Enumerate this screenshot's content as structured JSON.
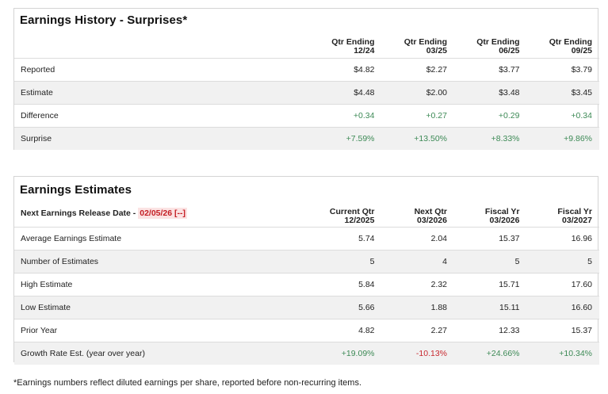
{
  "history": {
    "title": "Earnings History - Surprises*",
    "columns": [
      {
        "line1": "Qtr Ending",
        "line2": "12/24"
      },
      {
        "line1": "Qtr Ending",
        "line2": "03/25"
      },
      {
        "line1": "Qtr Ending",
        "line2": "06/25"
      },
      {
        "line1": "Qtr Ending",
        "line2": "09/25"
      }
    ],
    "rows": [
      {
        "label": "Reported",
        "values": [
          "$4.82",
          "$2.27",
          "$3.77",
          "$3.79"
        ]
      },
      {
        "label": "Estimate",
        "values": [
          "$4.48",
          "$2.00",
          "$3.48",
          "$3.45"
        ]
      },
      {
        "label": "Difference",
        "values": [
          "+0.34",
          "+0.27",
          "+0.29",
          "+0.34"
        ]
      },
      {
        "label": "Surprise",
        "values": [
          "+7.59%",
          "+13.50%",
          "+8.33%",
          "+9.86%"
        ]
      }
    ]
  },
  "estimates": {
    "title": "Earnings Estimates",
    "release_label": "Next Earnings Release Date - ",
    "release_date": "02/05/26 [--]",
    "columns": [
      {
        "line1": "Current Qtr",
        "line2": "12/2025"
      },
      {
        "line1": "Next Qtr",
        "line2": "03/2026"
      },
      {
        "line1": "Fiscal Yr",
        "line2": "03/2026"
      },
      {
        "line1": "Fiscal Yr",
        "line2": "03/2027"
      }
    ],
    "rows": [
      {
        "label": "Average Earnings Estimate",
        "values": [
          "5.74",
          "2.04",
          "15.37",
          "16.96"
        ]
      },
      {
        "label": "Number of Estimates",
        "values": [
          "5",
          "4",
          "5",
          "5"
        ]
      },
      {
        "label": "High Estimate",
        "values": [
          "5.84",
          "2.32",
          "15.71",
          "17.60"
        ]
      },
      {
        "label": "Low Estimate",
        "values": [
          "5.66",
          "1.88",
          "15.11",
          "16.60"
        ]
      },
      {
        "label": "Prior Year",
        "values": [
          "4.82",
          "2.27",
          "12.33",
          "15.37"
        ]
      },
      {
        "label": "Growth Rate Est. (year over year)",
        "values": [
          "+19.09%",
          "-10.13%",
          "+24.66%",
          "+10.34%"
        ]
      }
    ]
  },
  "colors": {
    "positive": "#3d8a56",
    "negative": "#c8282f",
    "release_date": "#c41e24"
  },
  "footnote": "*Earnings numbers reflect diluted earnings per share, reported before non-recurring items."
}
